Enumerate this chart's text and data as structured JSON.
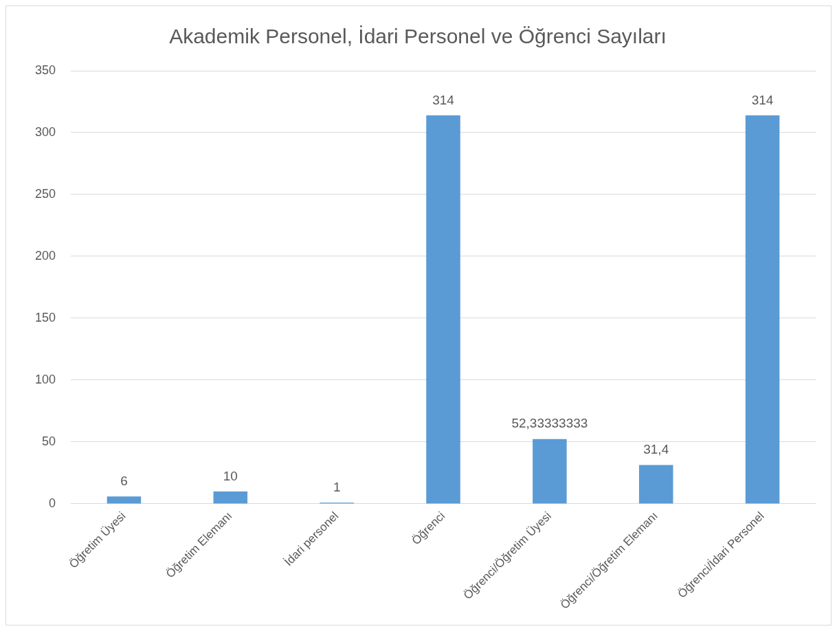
{
  "chart_data": {
    "type": "bar",
    "title": "Akademik Personel, İdari Personel ve Öğrenci Sayıları",
    "categories": [
      "Öğretim Üyesi",
      "Öğretim Elemanı",
      "İdari personel",
      "Öğrenci",
      "Öğrenci/Öğretim Üyesi",
      "Öğrenci/Öğretim Elemanı",
      "Öğrenci/İdari Personel"
    ],
    "values": [
      6,
      10,
      1,
      314,
      52.33333333,
      31.4,
      314
    ],
    "value_labels": [
      "6",
      "10",
      "1",
      "314",
      "52,33333333",
      "31,4",
      "314"
    ],
    "color": "#5b9bd5",
    "ylim": [
      0,
      350
    ],
    "yticks": [
      0,
      50,
      100,
      150,
      200,
      250,
      300,
      350
    ],
    "grid": "y",
    "legend": false
  }
}
